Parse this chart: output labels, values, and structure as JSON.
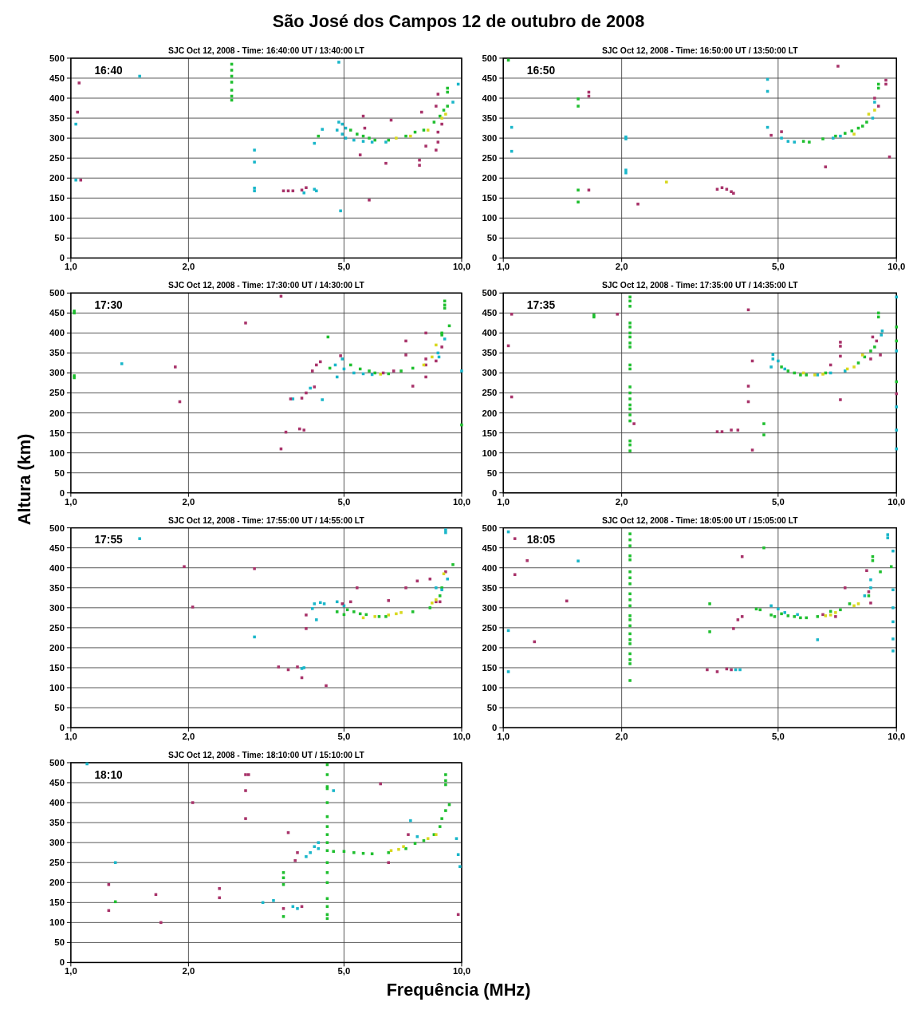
{
  "chart_data": [
    {
      "type": "scatter",
      "title": "São José dos Campos 12 de outubro de 2008",
      "subtitle": "SJC Oct 12, 2008 - Time: 16:40:00 UT / 13:40:00 LT",
      "annotations": [
        "16:40"
      ],
      "log": "x",
      "xlim": [
        1,
        10
      ],
      "ylim": [
        0,
        500
      ],
      "xticks": [
        {
          "value": 1,
          "label": "1,0"
        },
        {
          "value": 2,
          "label": "2,0"
        },
        {
          "value": 5,
          "label": "5,0"
        },
        {
          "value": 10,
          "label": "10,0"
        }
      ],
      "yticks": [
        0,
        50,
        100,
        150,
        200,
        250,
        300,
        350,
        400,
        450,
        500
      ],
      "grid": true,
      "marker": "square",
      "series": [
        {
          "color": "#1fbf2f",
          "x": [
            2.58,
            2.58,
            2.58,
            2.58,
            2.58,
            2.58,
            2.58,
            4.3,
            5.2,
            5.4,
            5.6,
            5.8,
            6.0,
            6.5,
            7.2,
            7.6,
            8.0,
            8.5,
            8.8,
            9.0,
            9.2,
            9.2,
            9.2
          ],
          "values": [
            395,
            405,
            420,
            440,
            455,
            470,
            485,
            305,
            320,
            310,
            305,
            300,
            295,
            295,
            305,
            315,
            320,
            340,
            355,
            370,
            380,
            415,
            425
          ]
        },
        {
          "color": "#19b6c9",
          "x": [
            1.03,
            1.03,
            1.5,
            2.95,
            2.95,
            2.95,
            2.95,
            3.95,
            4.2,
            4.25,
            4.85,
            4.9,
            4.2,
            4.4,
            4.85,
            4.95,
            5.05,
            4.8,
            4.95,
            5.05,
            5.3,
            5.6,
            5.9,
            6.4,
            9.5,
            9.8
          ],
          "values": [
            335,
            195,
            455,
            270,
            240,
            175,
            168,
            163,
            172,
            168,
            490,
            118,
            287,
            322,
            340,
            335,
            325,
            320,
            310,
            300,
            295,
            292,
            290,
            290,
            390,
            435
          ]
        },
        {
          "color": "#a8336a",
          "x": [
            1.05,
            1.04,
            1.06,
            3.5,
            3.6,
            3.7,
            3.9,
            4.0,
            5.5,
            5.6,
            5.65,
            5.8,
            6.4,
            6.6,
            7.8,
            7.8,
            8.1,
            7.9,
            8.6,
            8.7,
            8.6,
            8.7,
            8.7,
            8.9
          ],
          "values": [
            438,
            365,
            195,
            168,
            168,
            168,
            170,
            176,
            258,
            355,
            325,
            145,
            237,
            345,
            245,
            232,
            280,
            365,
            380,
            410,
            270,
            290,
            315,
            335
          ]
        },
        {
          "color": "#d8d820",
          "x": [
            6.8,
            7.4,
            8.2,
            8.9,
            9.1
          ],
          "values": [
            300,
            305,
            320,
            350,
            360
          ]
        }
      ]
    },
    {
      "type": "scatter",
      "subtitle": "SJC Oct 12, 2008 - Time: 16:50:00 UT / 13:50:00 LT",
      "annotations": [
        "16:50"
      ],
      "log": "x",
      "xlim": [
        1,
        10
      ],
      "ylim": [
        0,
        500
      ],
      "xticks": [
        {
          "value": 1,
          "label": "1,0"
        },
        {
          "value": 2,
          "label": "2,0"
        },
        {
          "value": 5,
          "label": "5,0"
        },
        {
          "value": 10,
          "label": "10,0"
        }
      ],
      "yticks": [
        0,
        50,
        100,
        150,
        200,
        250,
        300,
        350,
        400,
        450,
        500
      ],
      "grid": true,
      "marker": "square",
      "series": [
        {
          "color": "#1fbf2f",
          "x": [
            1.03,
            1.55,
            1.55,
            1.55,
            1.55,
            5.8,
            6.0,
            6.5,
            7.0,
            7.4,
            7.7,
            8.0,
            8.2,
            8.4,
            9.0,
            9.0
          ],
          "values": [
            495,
            398,
            380,
            170,
            140,
            292,
            290,
            298,
            305,
            312,
            318,
            325,
            330,
            340,
            425,
            435
          ]
        },
        {
          "color": "#19b6c9",
          "x": [
            1.05,
            1.05,
            2.05,
            2.05,
            2.05,
            2.05,
            4.7,
            4.7,
            4.7,
            5.1,
            5.3,
            5.5,
            6.9,
            7.2,
            8.7,
            8.8
          ],
          "values": [
            327,
            267,
            303,
            298,
            220,
            213,
            447,
            417,
            327,
            300,
            292,
            290,
            300,
            305,
            350,
            390
          ]
        },
        {
          "color": "#a8336a",
          "x": [
            1.65,
            1.65,
            1.65,
            8.8,
            9.0,
            9.4,
            9.4,
            9.6,
            7.1,
            2.2,
            3.5,
            3.6,
            3.7,
            3.8,
            3.85,
            5.1,
            4.8,
            6.6
          ],
          "values": [
            415,
            405,
            170,
            400,
            380,
            445,
            435,
            253,
            480,
            135,
            172,
            176,
            172,
            166,
            162,
            316,
            307,
            228
          ]
        },
        {
          "color": "#d8d820",
          "x": [
            2.6,
            7.8,
            8.5,
            8.8
          ],
          "values": [
            190,
            310,
            360,
            370
          ]
        }
      ]
    },
    {
      "type": "scatter",
      "subtitle": "SJC Oct 12, 2008 - Time: 17:30:00 UT / 14:30:00 LT",
      "annotations": [
        "17:30"
      ],
      "log": "x",
      "xlim": [
        1,
        10
      ],
      "ylim": [
        0,
        500
      ],
      "xticks": [
        {
          "value": 1,
          "label": "1,0"
        },
        {
          "value": 2,
          "label": "2,0"
        },
        {
          "value": 5,
          "label": "5,0"
        },
        {
          "value": 10,
          "label": "10,0"
        }
      ],
      "yticks": [
        0,
        50,
        100,
        150,
        200,
        250,
        300,
        350,
        400,
        450,
        500
      ],
      "grid": true,
      "marker": "square",
      "series": [
        {
          "color": "#1fbf2f",
          "x": [
            1.02,
            1.02,
            1.02,
            1.02,
            4.55,
            4.6,
            5.2,
            5.5,
            5.8,
            6.0,
            6.5,
            7.0,
            7.5,
            9.05,
            9.05,
            9.05,
            8.9,
            8.9,
            9.3,
            10
          ],
          "values": [
            455,
            450,
            293,
            288,
            390,
            312,
            320,
            310,
            305,
            300,
            298,
            305,
            312,
            480,
            470,
            462,
            400,
            395,
            418,
            170
          ]
        },
        {
          "color": "#19b6c9",
          "x": [
            1.35,
            4.4,
            3.7,
            4.1,
            4.8,
            4.75,
            4.95,
            5.0,
            5.3,
            5.6,
            5.9,
            9.05,
            8.7,
            8.75,
            10
          ],
          "values": [
            323,
            233,
            235,
            262,
            290,
            320,
            335,
            310,
            300,
            298,
            296,
            385,
            350,
            340,
            305
          ]
        },
        {
          "color": "#a8336a",
          "x": [
            3.45,
            2.8,
            1.85,
            1.9,
            3.65,
            3.9,
            4.0,
            4.25,
            4.35,
            4.2,
            3.55,
            3.45,
            3.85,
            3.95,
            4.15,
            4.9,
            6.3,
            6.7,
            7.2,
            7.2,
            7.5,
            8.1,
            8.1,
            8.1,
            8.1,
            8.6,
            8.9
          ],
          "values": [
            492,
            425,
            315,
            228,
            235,
            237,
            250,
            320,
            328,
            265,
            152,
            110,
            160,
            157,
            305,
            343,
            300,
            305,
            380,
            345,
            267,
            290,
            320,
            335,
            400,
            330,
            365
          ]
        },
        {
          "color": "#d8d820",
          "x": [
            6.2,
            8.0,
            8.4,
            8.6
          ],
          "values": [
            297,
            320,
            340,
            370
          ]
        }
      ]
    },
    {
      "type": "scatter",
      "subtitle": "SJC Oct 12, 2008 - Time: 17:35:00 UT / 14:35:00 LT",
      "annotations": [
        "17:35"
      ],
      "log": "x",
      "xlim": [
        1,
        10
      ],
      "ylim": [
        0,
        500
      ],
      "xticks": [
        {
          "value": 1,
          "label": "1,0"
        },
        {
          "value": 2,
          "label": "2,0"
        },
        {
          "value": 5,
          "label": "5,0"
        },
        {
          "value": 10,
          "label": "10,0"
        }
      ],
      "yticks": [
        0,
        50,
        100,
        150,
        200,
        250,
        300,
        350,
        400,
        450,
        500
      ],
      "grid": true,
      "marker": "square",
      "series": [
        {
          "color": "#1fbf2f",
          "x": [
            2.1,
            2.1,
            2.1,
            2.1,
            2.1,
            2.1,
            2.1,
            2.1,
            2.1,
            2.1,
            2.1,
            2.1,
            2.1,
            2.1,
            2.1,
            2.1,
            2.1,
            2.1,
            2.1,
            2.1,
            2.1,
            1.7,
            1.7,
            4.6,
            4.6,
            5.1,
            5.3,
            5.5,
            5.7,
            5.9,
            6.6,
            8.0,
            8.3,
            8.6,
            8.8,
            9.0,
            9.0,
            10,
            10,
            10
          ],
          "values": [
            490,
            480,
            467,
            425,
            415,
            400,
            390,
            375,
            365,
            320,
            310,
            265,
            250,
            235,
            220,
            210,
            195,
            180,
            130,
            120,
            105,
            445,
            440,
            173,
            145,
            315,
            305,
            300,
            295,
            295,
            300,
            325,
            340,
            355,
            365,
            450,
            440,
            415,
            380,
            278
          ]
        },
        {
          "color": "#19b6c9",
          "x": [
            4.85,
            4.85,
            4.8,
            5.0,
            5.2,
            6.3,
            6.8,
            7.4,
            9.2,
            9.15,
            10,
            10,
            10,
            10,
            10
          ],
          "values": [
            346,
            335,
            315,
            330,
            310,
            295,
            300,
            305,
            405,
            395,
            490,
            355,
            215,
            157,
            110
          ]
        },
        {
          "color": "#a8336a",
          "x": [
            1.05,
            1.03,
            1.05,
            2.15,
            1.95,
            3.5,
            3.6,
            3.8,
            3.95,
            4.2,
            4.3,
            4.2,
            4.2,
            4.3,
            6.8,
            7.2,
            7.2,
            7.2,
            7.2,
            8.7,
            8.9,
            9.1,
            8.6,
            10
          ],
          "values": [
            447,
            368,
            240,
            173,
            447,
            153,
            153,
            157,
            157,
            458,
            330,
            267,
            228,
            107,
            320,
            377,
            367,
            342,
            233,
            390,
            380,
            345,
            335,
            248
          ]
        },
        {
          "color": "#d8d820",
          "x": [
            5.8,
            6.2,
            6.5,
            7.5,
            7.8,
            8.2
          ],
          "values": [
            300,
            295,
            297,
            310,
            315,
            345
          ]
        }
      ]
    },
    {
      "type": "scatter",
      "subtitle": "SJC Oct 12, 2008 - Time: 17:55:00 UT / 14:55:00 LT",
      "annotations": [
        "17:55"
      ],
      "ylabel": "Altura (km)",
      "log": "x",
      "xlim": [
        1,
        10
      ],
      "ylim": [
        0,
        500
      ],
      "xticks": [
        {
          "value": 1,
          "label": "1,0"
        },
        {
          "value": 2,
          "label": "2,0"
        },
        {
          "value": 5,
          "label": "5,0"
        },
        {
          "value": 10,
          "label": "10,0"
        }
      ],
      "yticks": [
        0,
        50,
        100,
        150,
        200,
        250,
        300,
        350,
        400,
        450,
        500
      ],
      "grid": true,
      "marker": "square",
      "series": [
        {
          "color": "#1fbf2f",
          "x": [
            5.1,
            5.3,
            5.5,
            5.7,
            6.15,
            6.4,
            4.8,
            5.0,
            8.3,
            8.8,
            8.9,
            9.5,
            7.5
          ],
          "values": [
            295,
            290,
            285,
            283,
            278,
            278,
            290,
            283,
            300,
            330,
            350,
            408,
            290
          ]
        },
        {
          "color": "#19b6c9",
          "x": [
            1.5,
            2.95,
            3.9,
            3.95,
            4.2,
            4.25,
            4.35,
            4.45,
            4.8,
            5.0,
            9.1,
            9.1,
            8.6,
            8.9,
            9.2,
            4.15
          ],
          "values": [
            473,
            227,
            148,
            150,
            310,
            270,
            313,
            310,
            315,
            305,
            495,
            488,
            350,
            345,
            372,
            298
          ]
        },
        {
          "color": "#a8336a",
          "x": [
            1.95,
            2.05,
            2.95,
            3.4,
            3.6,
            3.8,
            3.9,
            4.0,
            4.0,
            4.5,
            5.2,
            4.95,
            5.4,
            6.5,
            7.2,
            7.7,
            8.3,
            8.6,
            8.8,
            9.1
          ],
          "values": [
            403,
            302,
            398,
            152,
            145,
            152,
            125,
            282,
            248,
            105,
            315,
            310,
            350,
            318,
            350,
            367,
            372,
            315,
            315,
            390
          ]
        },
        {
          "color": "#d8d820",
          "x": [
            5.6,
            6.0,
            6.5,
            6.8,
            7.0,
            8.4,
            8.6,
            9.0
          ],
          "values": [
            275,
            278,
            282,
            285,
            288,
            312,
            320,
            385
          ]
        }
      ]
    },
    {
      "type": "scatter",
      "subtitle": "SJC Oct 12, 2008 - Time: 18:05:00 UT / 15:05:00 LT",
      "annotations": [
        "18:05"
      ],
      "log": "x",
      "xlim": [
        1,
        10
      ],
      "ylim": [
        0,
        500
      ],
      "xticks": [
        {
          "value": 1,
          "label": "1,0"
        },
        {
          "value": 2,
          "label": "2,0"
        },
        {
          "value": 5,
          "label": "5,0"
        },
        {
          "value": 10,
          "label": "10,0"
        }
      ],
      "yticks": [
        0,
        50,
        100,
        150,
        200,
        250,
        300,
        350,
        400,
        450,
        500
      ],
      "grid": true,
      "marker": "square",
      "series": [
        {
          "color": "#1fbf2f",
          "x": [
            2.1,
            2.1,
            2.1,
            2.1,
            2.1,
            2.1,
            2.1,
            2.1,
            2.1,
            2.1,
            2.1,
            2.1,
            2.1,
            2.1,
            2.1,
            2.1,
            2.1,
            2.1,
            2.1,
            2.1,
            2.1,
            3.35,
            3.35,
            4.4,
            4.5,
            4.6,
            4.8,
            4.9,
            5.1,
            5.3,
            5.5,
            5.7,
            5.9,
            6.3,
            6.8,
            7.2,
            7.6,
            8.5,
            8.7,
            8.7,
            9.1,
            9.7
          ],
          "values": [
            485,
            470,
            455,
            430,
            420,
            390,
            375,
            360,
            335,
            320,
            305,
            280,
            270,
            255,
            235,
            220,
            210,
            185,
            170,
            160,
            118,
            310,
            240,
            297,
            295,
            450,
            282,
            278,
            285,
            280,
            278,
            275,
            275,
            278,
            291,
            295,
            310,
            330,
            428,
            418,
            390,
            403
          ]
        },
        {
          "color": "#19b6c9",
          "x": [
            1.03,
            1.03,
            1.03,
            1.55,
            3.9,
            4.0,
            4.8,
            5.0,
            5.2,
            5.6,
            6.3,
            8.3,
            8.6,
            8.6,
            9.5,
            9.5,
            9.8,
            9.8,
            9.8,
            9.8,
            9.8,
            9.8
          ],
          "values": [
            490,
            243,
            140,
            417,
            145,
            145,
            305,
            297,
            288,
            283,
            220,
            330,
            370,
            350,
            483,
            475,
            442,
            345,
            300,
            265,
            222,
            192
          ]
        },
        {
          "color": "#a8336a",
          "x": [
            1.07,
            1.07,
            1.15,
            1.2,
            1.45,
            3.3,
            3.5,
            3.7,
            3.8,
            3.95,
            4.05,
            3.85,
            4.05,
            6.5,
            7.0,
            7.4,
            8.4,
            8.6,
            8.5
          ],
          "values": [
            473,
            383,
            418,
            215,
            317,
            145,
            140,
            147,
            145,
            270,
            278,
            248,
            428,
            283,
            278,
            350,
            393,
            312,
            340
          ]
        },
        {
          "color": "#d8d820",
          "x": [
            6.6,
            6.8,
            7.0,
            7.8,
            8.0
          ],
          "values": [
            280,
            282,
            288,
            305,
            310
          ]
        }
      ]
    },
    {
      "type": "scatter",
      "subtitle": "SJC Oct 12, 2008 - Time: 18:10:00 UT / 15:10:00 LT",
      "annotations": [
        "18:10"
      ],
      "xlabel": "Frequência (MHz)",
      "log": "x",
      "xlim": [
        1,
        10
      ],
      "ylim": [
        0,
        500
      ],
      "xticks": [
        {
          "value": 1,
          "label": "1,0"
        },
        {
          "value": 2,
          "label": "2,0"
        },
        {
          "value": 5,
          "label": "5,0"
        },
        {
          "value": 10,
          "label": "10,0"
        }
      ],
      "yticks": [
        0,
        50,
        100,
        150,
        200,
        250,
        300,
        350,
        400,
        450,
        500
      ],
      "grid": true,
      "marker": "square",
      "series": [
        {
          "color": "#1fbf2f",
          "x": [
            4.53,
            4.53,
            4.53,
            4.53,
            4.53,
            4.53,
            4.53,
            4.53,
            4.53,
            4.53,
            4.53,
            4.53,
            4.53,
            4.53,
            4.53,
            4.53,
            4.53,
            9.1,
            9.1,
            9.1,
            9.3,
            3.5,
            3.5,
            3.5,
            3.5,
            1.3,
            4.7,
            5.0,
            5.3,
            5.6,
            5.9,
            6.5,
            7.2,
            7.6,
            8.0,
            8.5,
            8.8,
            8.9,
            9.1
          ],
          "values": [
            495,
            470,
            440,
            435,
            400,
            365,
            340,
            320,
            300,
            280,
            250,
            225,
            200,
            160,
            140,
            120,
            110,
            470,
            455,
            445,
            395,
            225,
            212,
            195,
            115,
            152,
            278,
            278,
            275,
            273,
            272,
            275,
            285,
            298,
            305,
            320,
            340,
            360,
            380
          ]
        },
        {
          "color": "#19b6c9",
          "x": [
            1.1,
            1.3,
            4.0,
            4.1,
            4.2,
            4.3,
            4.3,
            3.7,
            3.8,
            7.4,
            7.7,
            9.7,
            9.8,
            9.9,
            4.7,
            3.3,
            3.1
          ],
          "values": [
            497,
            250,
            265,
            275,
            290,
            300,
            285,
            140,
            135,
            355,
            315,
            310,
            270,
            240,
            430,
            155,
            150
          ]
        },
        {
          "color": "#a8336a",
          "x": [
            1.25,
            1.25,
            1.65,
            1.7,
            2.05,
            2.4,
            2.4,
            2.8,
            2.85,
            2.8,
            2.8,
            3.6,
            3.9,
            3.75,
            3.8,
            6.2,
            6.5,
            7.3,
            9.8,
            3.5
          ],
          "values": [
            195,
            130,
            170,
            100,
            400,
            185,
            162,
            470,
            470,
            430,
            360,
            325,
            140,
            255,
            275,
            447,
            250,
            320,
            120,
            135
          ]
        },
        {
          "color": "#d8d820",
          "x": [
            6.6,
            6.9,
            7.1,
            8.2,
            8.6
          ],
          "values": [
            280,
            283,
            290,
            310,
            320
          ]
        }
      ]
    }
  ]
}
